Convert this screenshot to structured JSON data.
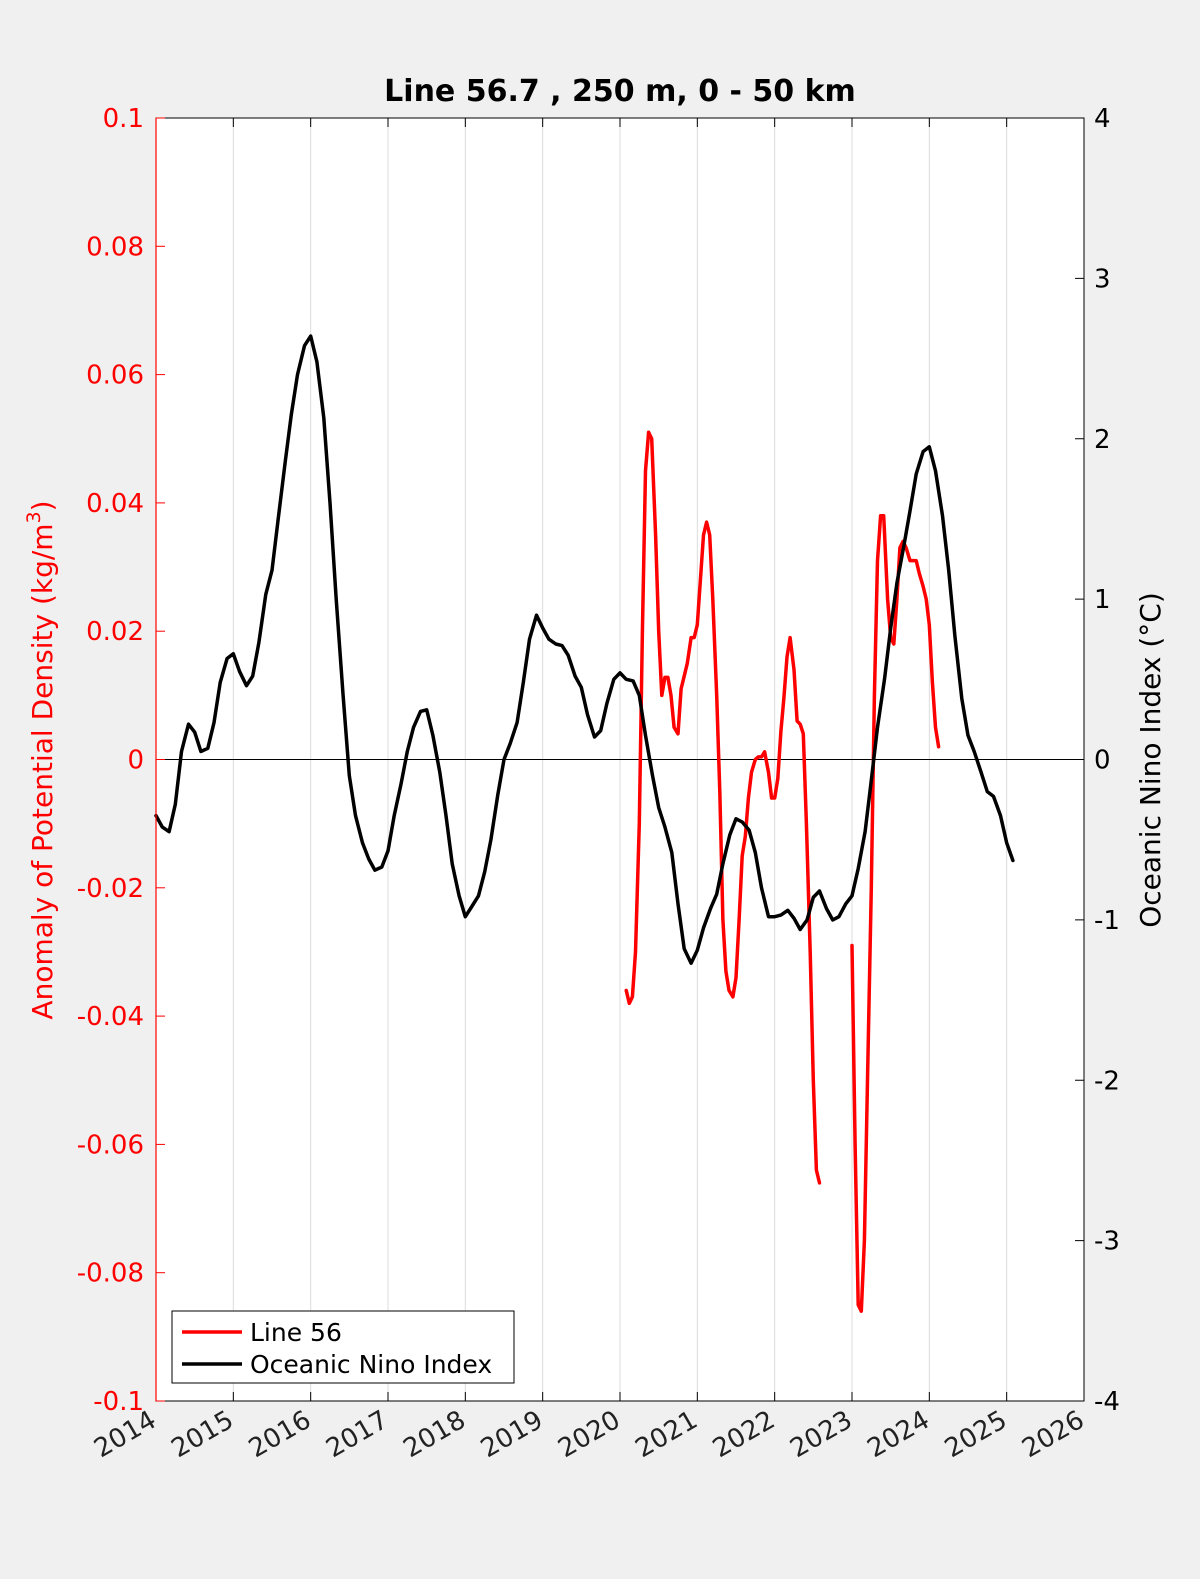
{
  "chart_data": {
    "type": "line",
    "title": "Line 56.7 , 250 m, 0 - 50 km",
    "xlabel": "",
    "ylabel_left": "Anomaly of Potential Density (kg/m",
    "ylabel_left_sup": "3",
    "ylabel_left_close": ")",
    "ylabel_right": "Oceanic Nino Index (°C)",
    "xlim": [
      2014,
      2026
    ],
    "ylim_left": [
      -0.1,
      0.1
    ],
    "ylim_right": [
      -4,
      4
    ],
    "x_ticks": [
      "2014",
      "2015",
      "2016",
      "2017",
      "2018",
      "2019",
      "2020",
      "2021",
      "2022",
      "2023",
      "2024",
      "2025",
      "2026"
    ],
    "y_left_ticks": [
      "0.1",
      "0.08",
      "0.06",
      "0.04",
      "0.02",
      "0",
      "-0.02",
      "-0.04",
      "-0.06",
      "-0.08",
      "-0.1"
    ],
    "y_right_ticks": [
      "4",
      "3",
      "2",
      "1",
      "0",
      "-1",
      "-2",
      "-3",
      "-4"
    ],
    "grid": "vertical",
    "zero_line": true,
    "legend_position": "bottom-left",
    "legend": [
      "Line 56",
      "Oceanic Nino Index"
    ],
    "colors": {
      "line56": "#ff0000",
      "oni": "#000000",
      "left_axis": "#ff0000",
      "right_axis": "#000000",
      "background": "#f0f0f0",
      "plot_bg": "#ffffff",
      "grid": "#dcdcdc"
    },
    "series": [
      {
        "name": "Line 56",
        "axis": "left",
        "segments": [
          [
            [
              2020.08,
              -0.036
            ],
            [
              2020.12,
              -0.038
            ],
            [
              2020.16,
              -0.037
            ],
            [
              2020.2,
              -0.03
            ],
            [
              2020.25,
              -0.01
            ],
            [
              2020.29,
              0.02
            ],
            [
              2020.33,
              0.045
            ],
            [
              2020.37,
              0.051
            ],
            [
              2020.41,
              0.05
            ],
            [
              2020.46,
              0.035
            ],
            [
              2020.5,
              0.02
            ],
            [
              2020.54,
              0.01
            ],
            [
              2020.58,
              0.0128
            ],
            [
              2020.62,
              0.0128
            ],
            [
              2020.66,
              0.01
            ],
            [
              2020.7,
              0.005
            ],
            [
              2020.75,
              0.004
            ],
            [
              2020.79,
              0.011
            ],
            [
              2020.83,
              0.013
            ],
            [
              2020.87,
              0.015
            ],
            [
              2020.92,
              0.019
            ],
            [
              2020.96,
              0.019
            ],
            [
              2021.0,
              0.021
            ],
            [
              2021.04,
              0.028
            ],
            [
              2021.08,
              0.035
            ],
            [
              2021.12,
              0.037
            ],
            [
              2021.16,
              0.035
            ],
            [
              2021.2,
              0.025
            ],
            [
              2021.25,
              0.01
            ],
            [
              2021.29,
              -0.005
            ],
            [
              2021.33,
              -0.025
            ],
            [
              2021.37,
              -0.033
            ],
            [
              2021.41,
              -0.036
            ],
            [
              2021.46,
              -0.037
            ],
            [
              2021.5,
              -0.034
            ],
            [
              2021.54,
              -0.025
            ],
            [
              2021.58,
              -0.015
            ],
            [
              2021.62,
              -0.012
            ],
            [
              2021.66,
              -0.006
            ],
            [
              2021.7,
              -0.002
            ],
            [
              2021.75,
              0.0
            ],
            [
              2021.79,
              0.0004
            ],
            [
              2021.83,
              0.0004
            ],
            [
              2021.87,
              0.0012
            ],
            [
              2021.92,
              -0.002
            ],
            [
              2021.96,
              -0.006
            ],
            [
              2022.0,
              -0.006
            ],
            [
              2022.04,
              -0.003
            ],
            [
              2022.08,
              0.0044
            ],
            [
              2022.12,
              0.0096
            ],
            [
              2022.16,
              0.016
            ],
            [
              2022.2,
              0.019
            ],
            [
              2022.25,
              0.014
            ],
            [
              2022.29,
              0.006
            ],
            [
              2022.33,
              0.0055
            ],
            [
              2022.37,
              0.004
            ],
            [
              2022.41,
              -0.01
            ],
            [
              2022.46,
              -0.03
            ],
            [
              2022.5,
              -0.05
            ],
            [
              2022.54,
              -0.064
            ],
            [
              2022.58,
              -0.066
            ]
          ],
          [
            [
              2023.0,
              -0.029
            ],
            [
              2023.04,
              -0.06
            ],
            [
              2023.08,
              -0.085
            ],
            [
              2023.12,
              -0.086
            ],
            [
              2023.16,
              -0.075
            ],
            [
              2023.2,
              -0.05
            ],
            [
              2023.25,
              -0.02
            ],
            [
              2023.29,
              0.01
            ],
            [
              2023.33,
              0.031
            ],
            [
              2023.37,
              0.038
            ],
            [
              2023.41,
              0.038
            ],
            [
              2023.46,
              0.025
            ],
            [
              2023.5,
              0.019
            ],
            [
              2023.54,
              0.018
            ],
            [
              2023.58,
              0.025
            ],
            [
              2023.62,
              0.033
            ],
            [
              2023.66,
              0.034
            ],
            [
              2023.7,
              0.033
            ],
            [
              2023.75,
              0.031
            ],
            [
              2023.79,
              0.031
            ],
            [
              2023.83,
              0.031
            ],
            [
              2023.87,
              0.029
            ],
            [
              2023.92,
              0.027
            ],
            [
              2023.96,
              0.025
            ],
            [
              2024.0,
              0.021
            ],
            [
              2024.04,
              0.012
            ],
            [
              2024.08,
              0.005
            ],
            [
              2024.12,
              0.002
            ]
          ]
        ]
      },
      {
        "name": "Oceanic Nino Index",
        "axis": "right",
        "points": [
          [
            2014.0,
            -0.35
          ],
          [
            2014.08,
            -0.42
          ],
          [
            2014.17,
            -0.45
          ],
          [
            2014.25,
            -0.28
          ],
          [
            2014.33,
            0.05
          ],
          [
            2014.42,
            0.22
          ],
          [
            2014.5,
            0.17
          ],
          [
            2014.58,
            0.05
          ],
          [
            2014.67,
            0.07
          ],
          [
            2014.75,
            0.23
          ],
          [
            2014.83,
            0.48
          ],
          [
            2014.92,
            0.63
          ],
          [
            2015.0,
            0.66
          ],
          [
            2015.08,
            0.55
          ],
          [
            2015.17,
            0.46
          ],
          [
            2015.25,
            0.52
          ],
          [
            2015.33,
            0.73
          ],
          [
            2015.42,
            1.03
          ],
          [
            2015.5,
            1.18
          ],
          [
            2015.58,
            1.5
          ],
          [
            2015.67,
            1.85
          ],
          [
            2015.75,
            2.15
          ],
          [
            2015.83,
            2.4
          ],
          [
            2015.92,
            2.58
          ],
          [
            2016.0,
            2.64
          ],
          [
            2016.08,
            2.48
          ],
          [
            2016.17,
            2.13
          ],
          [
            2016.25,
            1.6
          ],
          [
            2016.33,
            1.0
          ],
          [
            2016.42,
            0.4
          ],
          [
            2016.5,
            -0.1
          ],
          [
            2016.58,
            -0.35
          ],
          [
            2016.67,
            -0.52
          ],
          [
            2016.75,
            -0.62
          ],
          [
            2016.83,
            -0.69
          ],
          [
            2016.92,
            -0.67
          ],
          [
            2017.0,
            -0.57
          ],
          [
            2017.08,
            -0.35
          ],
          [
            2017.17,
            -0.15
          ],
          [
            2017.25,
            0.05
          ],
          [
            2017.33,
            0.2
          ],
          [
            2017.42,
            0.3
          ],
          [
            2017.5,
            0.31
          ],
          [
            2017.58,
            0.15
          ],
          [
            2017.67,
            -0.08
          ],
          [
            2017.75,
            -0.35
          ],
          [
            2017.83,
            -0.65
          ],
          [
            2017.92,
            -0.85
          ],
          [
            2018.0,
            -0.98
          ],
          [
            2018.08,
            -0.92
          ],
          [
            2018.17,
            -0.85
          ],
          [
            2018.25,
            -0.7
          ],
          [
            2018.33,
            -0.5
          ],
          [
            2018.42,
            -0.22
          ],
          [
            2018.5,
            0.0
          ],
          [
            2018.58,
            0.1
          ],
          [
            2018.67,
            0.23
          ],
          [
            2018.75,
            0.48
          ],
          [
            2018.83,
            0.75
          ],
          [
            2018.92,
            0.9
          ],
          [
            2019.0,
            0.82
          ],
          [
            2019.08,
            0.75
          ],
          [
            2019.17,
            0.72
          ],
          [
            2019.25,
            0.71
          ],
          [
            2019.33,
            0.65
          ],
          [
            2019.42,
            0.52
          ],
          [
            2019.5,
            0.45
          ],
          [
            2019.58,
            0.28
          ],
          [
            2019.67,
            0.14
          ],
          [
            2019.75,
            0.18
          ],
          [
            2019.83,
            0.35
          ],
          [
            2019.92,
            0.5
          ],
          [
            2020.0,
            0.54
          ],
          [
            2020.08,
            0.5
          ],
          [
            2020.17,
            0.49
          ],
          [
            2020.25,
            0.4
          ],
          [
            2020.33,
            0.15
          ],
          [
            2020.42,
            -0.1
          ],
          [
            2020.5,
            -0.3
          ],
          [
            2020.58,
            -0.42
          ],
          [
            2020.67,
            -0.58
          ],
          [
            2020.75,
            -0.9
          ],
          [
            2020.83,
            -1.18
          ],
          [
            2020.92,
            -1.27
          ],
          [
            2021.0,
            -1.19
          ],
          [
            2021.08,
            -1.05
          ],
          [
            2021.17,
            -0.93
          ],
          [
            2021.25,
            -0.84
          ],
          [
            2021.33,
            -0.65
          ],
          [
            2021.42,
            -0.47
          ],
          [
            2021.5,
            -0.37
          ],
          [
            2021.58,
            -0.39
          ],
          [
            2021.67,
            -0.44
          ],
          [
            2021.75,
            -0.58
          ],
          [
            2021.83,
            -0.8
          ],
          [
            2021.92,
            -0.98
          ],
          [
            2022.0,
            -0.98
          ],
          [
            2022.08,
            -0.97
          ],
          [
            2022.17,
            -0.94
          ],
          [
            2022.25,
            -0.99
          ],
          [
            2022.33,
            -1.06
          ],
          [
            2022.42,
            -1.0
          ],
          [
            2022.5,
            -0.86
          ],
          [
            2022.58,
            -0.82
          ],
          [
            2022.67,
            -0.93
          ],
          [
            2022.75,
            -1.0
          ],
          [
            2022.83,
            -0.98
          ],
          [
            2022.92,
            -0.9
          ],
          [
            2023.0,
            -0.85
          ],
          [
            2023.08,
            -0.68
          ],
          [
            2023.17,
            -0.45
          ],
          [
            2023.25,
            -0.13
          ],
          [
            2023.33,
            0.2
          ],
          [
            2023.42,
            0.5
          ],
          [
            2023.5,
            0.82
          ],
          [
            2023.58,
            1.1
          ],
          [
            2023.67,
            1.33
          ],
          [
            2023.75,
            1.55
          ],
          [
            2023.83,
            1.78
          ],
          [
            2023.92,
            1.92
          ],
          [
            2024.0,
            1.95
          ],
          [
            2024.08,
            1.8
          ],
          [
            2024.17,
            1.52
          ],
          [
            2024.25,
            1.18
          ],
          [
            2024.33,
            0.77
          ],
          [
            2024.42,
            0.38
          ],
          [
            2024.5,
            0.15
          ],
          [
            2024.58,
            0.05
          ],
          [
            2024.67,
            -0.08
          ],
          [
            2024.75,
            -0.2
          ],
          [
            2024.83,
            -0.23
          ],
          [
            2024.92,
            -0.35
          ],
          [
            2025.0,
            -0.52
          ],
          [
            2025.08,
            -0.63
          ]
        ]
      }
    ]
  }
}
